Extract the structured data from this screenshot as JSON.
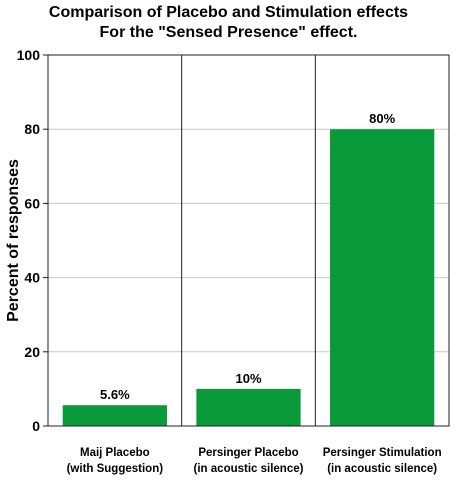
{
  "chart_data": {
    "type": "bar",
    "title": "Comparison of Placebo and Stimulation effects",
    "subtitle": "For the \"Sensed Presence\" effect.",
    "xlabel": "",
    "ylabel": "Percent of responses",
    "ylim": [
      0,
      100
    ],
    "yticks": [
      0,
      20,
      40,
      60,
      80,
      100
    ],
    "grid": true,
    "categories": [
      [
        "Maij Placebo",
        "(with Suggestion)"
      ],
      [
        "Persinger Placebo",
        "(in acoustic silence)"
      ],
      [
        "Persinger Stimulation",
        "(in acoustic silence)"
      ]
    ],
    "values": [
      5.6,
      10,
      80
    ],
    "data_labels": [
      "5.6%",
      "10%",
      "80%"
    ],
    "bar_color": "#0a9a3a"
  }
}
